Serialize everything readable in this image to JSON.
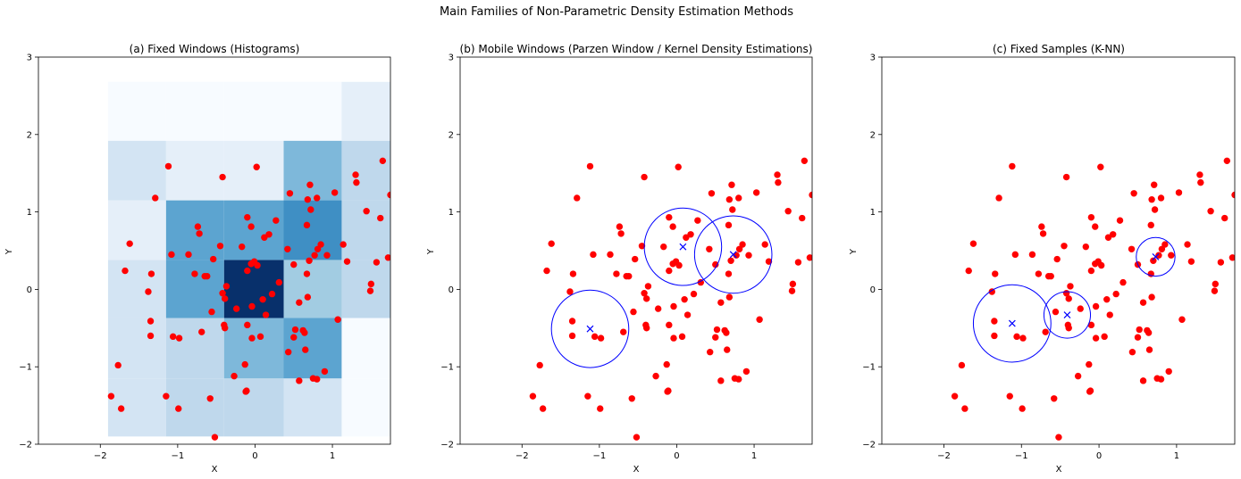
{
  "figure": {
    "suptitle": "Main Families of Non-Parametric Density Estimation Methods"
  },
  "colors": {
    "points": "#ff0000",
    "markers": "#0000ff",
    "spine": "#000000"
  },
  "chart_data": [
    {
      "type": "heatmap+scatter",
      "title": "(a) Fixed Windows (Histograms)",
      "xlabel": "X",
      "ylabel": "Y",
      "xlim": [
        -2.8,
        1.75
      ],
      "ylim": [
        -2.0,
        3.0
      ],
      "xticks": [
        -2,
        -1,
        0,
        1
      ],
      "yticks": [
        -2,
        -1,
        0,
        1,
        2,
        3
      ],
      "colormap": "Blues",
      "histogram": {
        "x_edges": [
          -1.9,
          -1.15,
          -0.4,
          0.37,
          1.12,
          1.75
        ],
        "y_edges": [
          -1.9,
          -1.15,
          -0.37,
          0.38,
          1.15,
          1.92,
          2.68
        ],
        "counts": [
          [
            2,
            3,
            3,
            2,
            0
          ],
          [
            2,
            3,
            5,
            6,
            0
          ],
          [
            2,
            6,
            11,
            4,
            3
          ],
          [
            1,
            6,
            6,
            7,
            3
          ],
          [
            2,
            1,
            1,
            5,
            3
          ],
          [
            0,
            0,
            0,
            0,
            1
          ]
        ]
      },
      "scatter": {
        "name": "",
        "marker": "circle"
      }
    },
    {
      "type": "scatter",
      "title": "(b) Mobile Windows (Parzen Window / Kernel Density Estimations)",
      "xlabel": "X",
      "ylabel": "Y",
      "xlim": [
        -2.8,
        1.75
      ],
      "ylim": [
        -2.0,
        3.0
      ],
      "xticks": [
        -2,
        -1,
        0,
        1
      ],
      "yticks": [
        -2,
        -1,
        0,
        1,
        2,
        3
      ],
      "windows": [
        {
          "cx": -1.12,
          "cy": -0.51,
          "r": 0.5
        },
        {
          "cx": 0.08,
          "cy": 0.55,
          "r": 0.5
        },
        {
          "cx": 0.73,
          "cy": 0.45,
          "r": 0.5
        }
      ]
    },
    {
      "type": "scatter",
      "title": "(c) Fixed Samples (K-NN)",
      "xlabel": "X",
      "ylabel": "Y",
      "xlim": [
        -2.8,
        1.75
      ],
      "ylim": [
        -2.0,
        3.0
      ],
      "xticks": [
        -2,
        -1,
        0,
        1
      ],
      "yticks": [
        -2,
        -1,
        0,
        1,
        2,
        3
      ],
      "windows": [
        {
          "cx": -1.12,
          "cy": -0.44,
          "r": 0.5
        },
        {
          "cx": -0.41,
          "cy": -0.33,
          "r": 0.3
        },
        {
          "cx": 0.73,
          "cy": 0.42,
          "r": 0.25
        }
      ]
    }
  ],
  "points": [
    [
      -1.12,
      1.59
    ],
    [
      -0.42,
      1.45
    ],
    [
      0.02,
      1.58
    ],
    [
      1.65,
      1.66
    ],
    [
      1.3,
      1.48
    ],
    [
      1.31,
      1.38
    ],
    [
      0.71,
      1.35
    ],
    [
      0.45,
      1.24
    ],
    [
      1.03,
      1.25
    ],
    [
      0.68,
      1.16
    ],
    [
      0.8,
      1.18
    ],
    [
      -1.29,
      1.18
    ],
    [
      1.75,
      1.22
    ],
    [
      0.72,
      1.03
    ],
    [
      1.44,
      1.01
    ],
    [
      -0.1,
      0.93
    ],
    [
      0.27,
      0.89
    ],
    [
      1.62,
      0.92
    ],
    [
      -0.74,
      0.81
    ],
    [
      0.67,
      0.83
    ],
    [
      -0.05,
      0.81
    ],
    [
      -0.72,
      0.72
    ],
    [
      0.18,
      0.71
    ],
    [
      0.12,
      0.67
    ],
    [
      -1.62,
      0.59
    ],
    [
      -0.45,
      0.56
    ],
    [
      -0.17,
      0.55
    ],
    [
      0.42,
      0.52
    ],
    [
      0.85,
      0.58
    ],
    [
      0.81,
      0.52
    ],
    [
      1.14,
      0.58
    ],
    [
      -1.08,
      0.45
    ],
    [
      -0.86,
      0.45
    ],
    [
      0.77,
      0.44
    ],
    [
      0.93,
      0.44
    ],
    [
      1.19,
      0.36
    ],
    [
      0.7,
      0.37
    ],
    [
      -0.54,
      0.39
    ],
    [
      0.5,
      0.32
    ],
    [
      1.57,
      0.35
    ],
    [
      1.72,
      0.41
    ],
    [
      -0.05,
      0.33
    ],
    [
      -0.01,
      0.36
    ],
    [
      0.03,
      0.31
    ],
    [
      -1.68,
      0.24
    ],
    [
      -0.1,
      0.24
    ],
    [
      -0.78,
      0.2
    ],
    [
      -1.34,
      0.2
    ],
    [
      -0.65,
      0.17
    ],
    [
      -0.62,
      0.17
    ],
    [
      0.31,
      0.09
    ],
    [
      0.67,
      0.2
    ],
    [
      -0.37,
      0.04
    ],
    [
      -1.38,
      -0.03
    ],
    [
      -0.42,
      -0.05
    ],
    [
      0.22,
      -0.06
    ],
    [
      1.49,
      -0.02
    ],
    [
      0.1,
      -0.13
    ],
    [
      0.68,
      -0.1
    ],
    [
      1.5,
      0.07
    ],
    [
      -0.39,
      -0.12
    ],
    [
      -0.04,
      -0.22
    ],
    [
      -0.24,
      -0.25
    ],
    [
      0.57,
      -0.17
    ],
    [
      0.14,
      -0.33
    ],
    [
      -0.56,
      -0.29
    ],
    [
      -0.69,
      -0.55
    ],
    [
      1.07,
      -0.39
    ],
    [
      -0.4,
      -0.46
    ],
    [
      -1.35,
      -0.41
    ],
    [
      -0.39,
      -0.5
    ],
    [
      -0.1,
      -0.46
    ],
    [
      0.52,
      -0.52
    ],
    [
      0.62,
      -0.53
    ],
    [
      0.5,
      -0.62
    ],
    [
      0.64,
      -0.56
    ],
    [
      -1.06,
      -0.61
    ],
    [
      -0.98,
      -0.63
    ],
    [
      -1.35,
      -0.6
    ],
    [
      -0.04,
      -0.63
    ],
    [
      0.07,
      -0.61
    ],
    [
      0.65,
      -0.78
    ],
    [
      0.43,
      -0.81
    ],
    [
      -1.77,
      -0.98
    ],
    [
      -0.13,
      -0.97
    ],
    [
      0.9,
      -1.06
    ],
    [
      -0.27,
      -1.12
    ],
    [
      0.75,
      -1.15
    ],
    [
      0.8,
      -1.16
    ],
    [
      0.57,
      -1.18
    ],
    [
      -0.11,
      -1.31
    ],
    [
      -0.12,
      -1.32
    ],
    [
      -1.86,
      -1.38
    ],
    [
      -1.15,
      -1.38
    ],
    [
      -0.58,
      -1.41
    ],
    [
      -0.99,
      -1.54
    ],
    [
      -1.73,
      -1.54
    ],
    [
      -0.52,
      -1.91
    ]
  ]
}
